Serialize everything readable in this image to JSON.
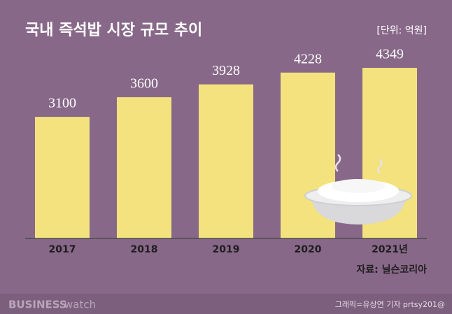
{
  "chart_data": {
    "type": "bar",
    "title": "국내 즉석밥 시장 규모 추이",
    "unit": "[단위: 억원]",
    "categories": [
      "2017",
      "2018",
      "2019",
      "2020",
      "2021년"
    ],
    "values": [
      3100,
      3600,
      3928,
      4228,
      4349
    ],
    "color": "#f3e27d",
    "source": "자료: 닐슨코리아",
    "credit": "그래픽=유상연 기자 prtsy201@",
    "brand": "BUSINESS",
    "brand_suffix": "watch"
  }
}
